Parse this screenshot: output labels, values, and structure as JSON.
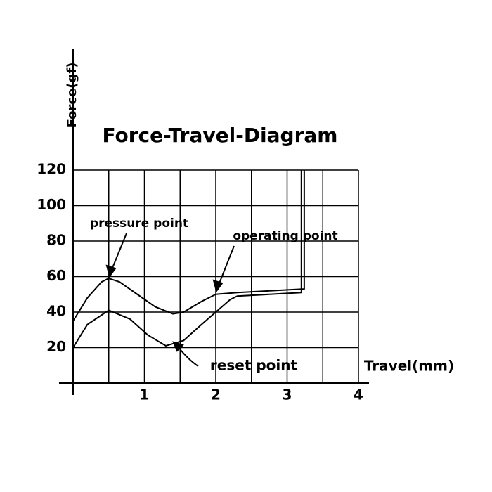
{
  "chart_data": {
    "type": "line",
    "title": "Force-Travel-Diagram",
    "y_label": "Force(gf)",
    "x_label": "Travel(mm)",
    "xlim": [
      0,
      4
    ],
    "xticks": [
      1,
      2,
      3,
      4
    ],
    "ylim": [
      0,
      120
    ],
    "yticks": [
      20,
      40,
      60,
      80,
      100,
      120
    ],
    "grid": true,
    "series": [
      {
        "color": "#000000",
        "x": [
          0,
          0.2,
          0.4,
          0.5,
          0.65,
          0.9,
          1.15,
          1.4,
          1.55,
          1.8,
          2.0,
          2.3,
          3.24,
          3.24
        ],
        "values": [
          35,
          48,
          57,
          59,
          57,
          50,
          43,
          39,
          40,
          46,
          50,
          51,
          53,
          120
        ]
      },
      {
        "color": "#000000",
        "x": [
          0,
          0.2,
          0.5,
          0.8,
          1.05,
          1.3,
          1.55,
          1.8,
          2.0,
          2.2,
          2.3,
          3.2,
          3.2
        ],
        "values": [
          20,
          33,
          41,
          36,
          27,
          21,
          24,
          33,
          40,
          47,
          49,
          51,
          120
        ]
      }
    ],
    "annotations": [
      "pressure point",
      "operating point",
      "reset point"
    ]
  }
}
